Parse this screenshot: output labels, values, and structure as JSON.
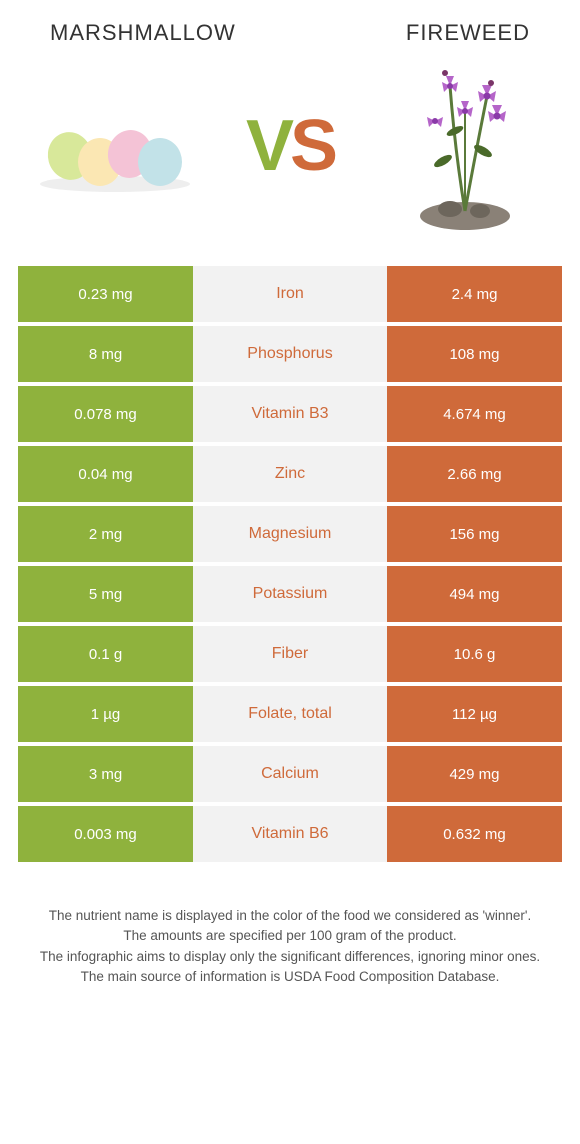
{
  "titles": {
    "left": "Marshmallow",
    "right": "Fireweed"
  },
  "vs": {
    "v": "V",
    "s": "S"
  },
  "colors": {
    "left_bg": "#8fb23d",
    "right_bg": "#cf6a3a",
    "mid_bg": "#f2f2f2",
    "cell_text": "#ffffff"
  },
  "table": {
    "rows": [
      {
        "left": "0.23 mg",
        "name": "Iron",
        "right": "2.4 mg",
        "winner": "right"
      },
      {
        "left": "8 mg",
        "name": "Phosphorus",
        "right": "108 mg",
        "winner": "right"
      },
      {
        "left": "0.078 mg",
        "name": "Vitamin B3",
        "right": "4.674 mg",
        "winner": "right"
      },
      {
        "left": "0.04 mg",
        "name": "Zinc",
        "right": "2.66 mg",
        "winner": "right"
      },
      {
        "left": "2 mg",
        "name": "Magnesium",
        "right": "156 mg",
        "winner": "right"
      },
      {
        "left": "5 mg",
        "name": "Potassium",
        "right": "494 mg",
        "winner": "right"
      },
      {
        "left": "0.1 g",
        "name": "Fiber",
        "right": "10.6 g",
        "winner": "right"
      },
      {
        "left": "1 µg",
        "name": "Folate, total",
        "right": "112 µg",
        "winner": "right"
      },
      {
        "left": "3 mg",
        "name": "Calcium",
        "right": "429 mg",
        "winner": "right"
      },
      {
        "left": "0.003 mg",
        "name": "Vitamin B6",
        "right": "0.632 mg",
        "winner": "right"
      }
    ]
  },
  "footer": {
    "line1": "The nutrient name is displayed in the color of the food we considered as 'winner'.",
    "line2": "The amounts are specified per 100 gram of the product.",
    "line3": "The infographic aims to display only the significant differences, ignoring minor ones.",
    "line4": "The main source of information is USDA Food Composition Database."
  }
}
